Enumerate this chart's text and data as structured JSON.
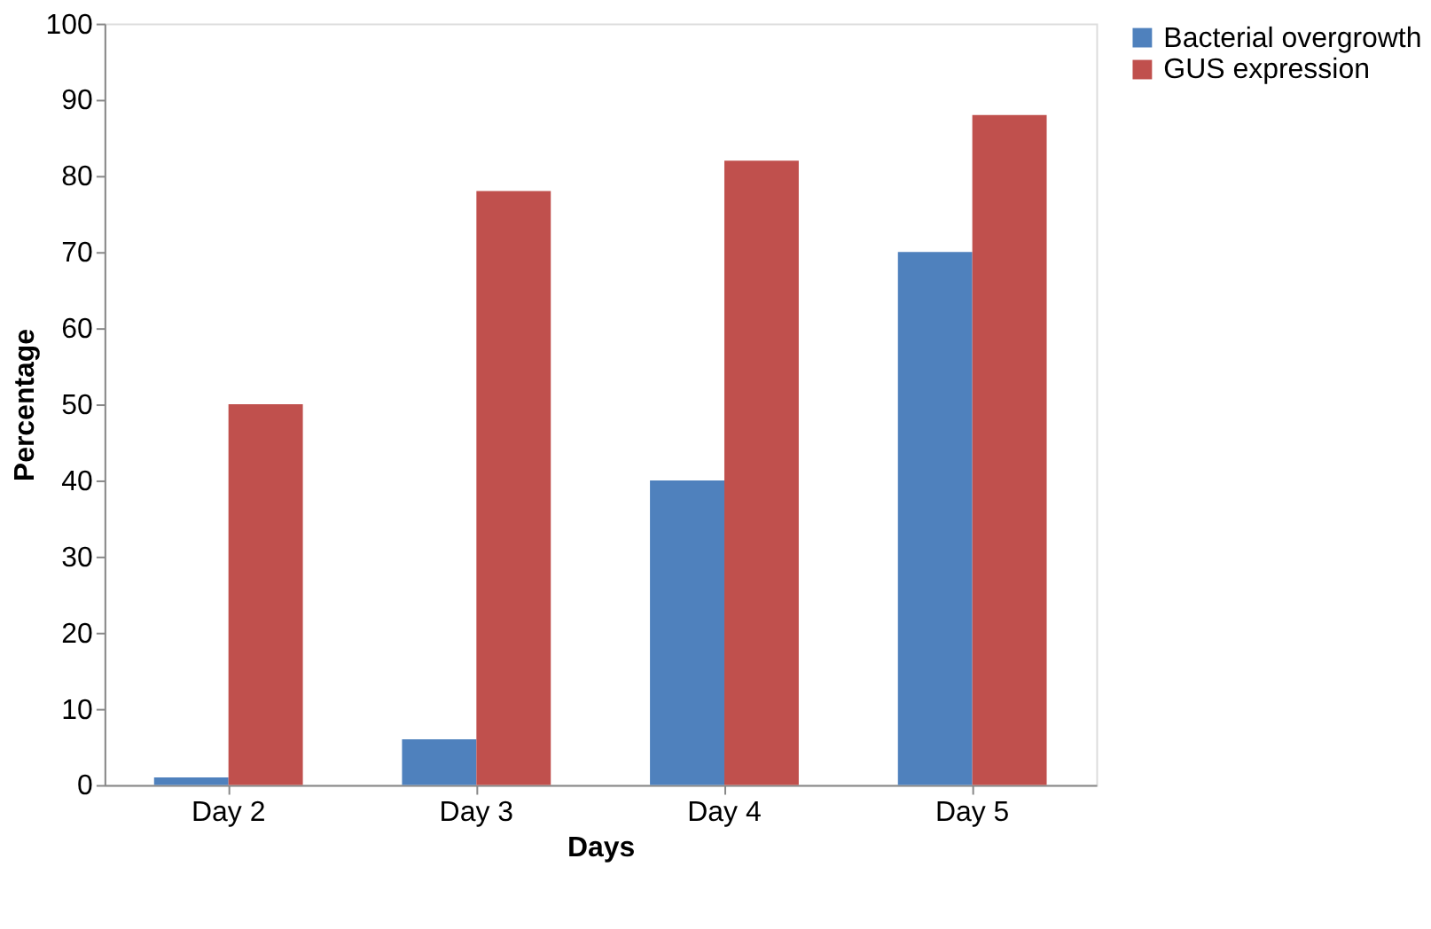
{
  "chart_data": {
    "type": "bar",
    "xlabel": "Days",
    "ylabel": "Percentage",
    "categories": [
      "Day 2",
      "Day 3",
      "Day 4",
      "Day 5"
    ],
    "series": [
      {
        "name": "Bacterial overgrowth",
        "color": "#4f81bd",
        "values": [
          1,
          6,
          40,
          70
        ]
      },
      {
        "name": "GUS expression",
        "color": "#c0504d",
        "values": [
          50,
          78,
          82,
          88
        ]
      }
    ],
    "ylim": [
      0,
      100
    ],
    "yticks": [
      0,
      10,
      20,
      30,
      40,
      50,
      60,
      70,
      80,
      90,
      100
    ],
    "grid": false,
    "legend": "right"
  }
}
